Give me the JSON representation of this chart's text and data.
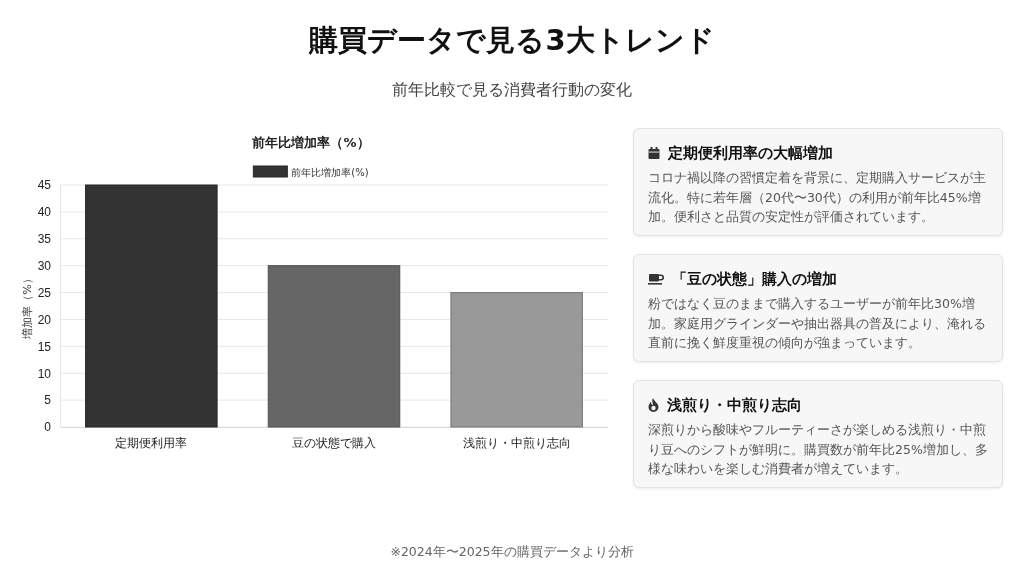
{
  "chart_data": [
    {
      "type": "other",
      "title": "購買データで見る3大トレンド",
      "subtitle": "前年比較で見る消費者行動の変化",
      "annotations": [
        "※2024年〜2025年の購買データより分析"
      ]
    },
    {
      "type": "bar",
      "title": "前年比増加率（%）",
      "ylabel": "増加率（%）",
      "categories": [
        "定期便利用率",
        "豆の状態で購入",
        "浅煎り・中煎り志向"
      ],
      "series": [
        {
          "name": "前年比増加率(%)",
          "color": "#333333",
          "colors": [
            "#333333",
            "#666666",
            "#999999"
          ],
          "values": [
            45,
            30,
            25
          ]
        }
      ],
      "ylim": [
        0,
        45
      ],
      "yticks": [
        0,
        5,
        10,
        15,
        20,
        25,
        30,
        35,
        40,
        45
      ],
      "grid": "y",
      "legend": "top"
    },
    {
      "type": "other",
      "title": "定期便利用率の大幅増加",
      "annotations": [
        "コロナ禍以降の習慣定着を背景に、定期購入サービスが主流化。特に若年層（20代〜30代）の利用が前年比45%増加。便利さと品質の安定性が評価されています。"
      ]
    },
    {
      "type": "other",
      "title": "「豆の状態」購入の増加",
      "annotations": [
        "粉ではなく豆のままで購入するユーザーが前年比30%増加。家庭用グラインダーや抽出器具の普及により、淹れる直前に挽く鮮度重視の傾向が強まっています。"
      ]
    },
    {
      "type": "other",
      "title": "浅煎り・中煎り志向",
      "annotations": [
        "深煎りから酸味やフルーティーさが楽しめる浅煎り・中煎り豆へのシフトが鮮明に。購買数が前年比25%増加し、多様な味わいを楽しむ消費者が増えています。"
      ]
    }
  ]
}
